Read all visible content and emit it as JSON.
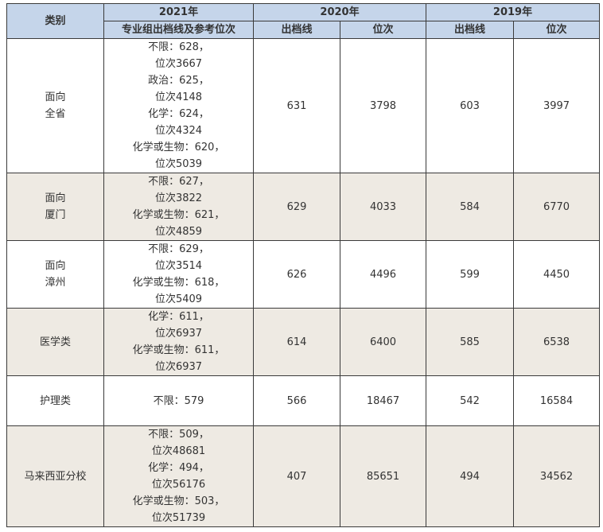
{
  "header": {
    "category": "类别",
    "year2021": "2021年",
    "year2020": "2020年",
    "year2019": "2019年",
    "sub2021": "专业组出档线及参考位次",
    "score": "出档线",
    "rank": "位次"
  },
  "rows": [
    {
      "category": [
        "面向",
        "全省"
      ],
      "y2021": [
        "不限：628，",
        "位次3667",
        "政治：625，",
        "位次4148",
        "化学：624，",
        "位次4324",
        "化学或生物：620，",
        "位次5039"
      ],
      "score2020": "631",
      "rank2020": "3798",
      "score2019": "603",
      "rank2019": "3997"
    },
    {
      "category": [
        "面向",
        "厦门"
      ],
      "y2021": [
        "不限：627，",
        "位次3822",
        "化学或生物：621，",
        "位次4859"
      ],
      "score2020": "629",
      "rank2020": "4033",
      "score2019": "584",
      "rank2019": "6770"
    },
    {
      "category": [
        "面向",
        "漳州"
      ],
      "y2021": [
        "不限：629，",
        "位次3514",
        "化学或生物：618，",
        "位次5409"
      ],
      "score2020": "626",
      "rank2020": "4496",
      "score2019": "599",
      "rank2019": "4450"
    },
    {
      "category": [
        "医学类"
      ],
      "y2021": [
        "化学：611，",
        "位次6937",
        "化学或生物：611，",
        "位次6937"
      ],
      "score2020": "614",
      "rank2020": "6400",
      "score2019": "585",
      "rank2019": "6538"
    },
    {
      "category": [
        "护理类"
      ],
      "y2021": [
        "不限：579"
      ],
      "score2020": "566",
      "rank2020": "18467",
      "score2019": "542",
      "rank2019": "16584"
    },
    {
      "category": [
        "马来西亚分校"
      ],
      "y2021": [
        "不限：509，",
        "位次48681",
        "化学：494，",
        "位次56176",
        "化学或生物：503，",
        "位次51739"
      ],
      "score2020": "407",
      "rank2020": "85651",
      "score2019": "494",
      "rank2019": "34562"
    }
  ]
}
